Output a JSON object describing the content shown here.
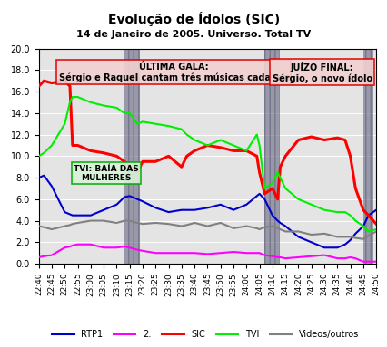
{
  "chart_data": {
    "type": "line",
    "title": "Evolução de Ídolos (SIC)",
    "subtitle": "14 de Janeiro de 2005. Universo. Total TV",
    "annotations": [
      "ÚLTIMA GALA:\nSérgio e Raquel cantam três músicas cada um",
      "JUÍZO FINAL:\nSérgio, o novo ídolo",
      "TVI: BAÍA DAS\nMULHERES"
    ],
    "x": [
      1360,
      1362,
      1365,
      1370,
      1372,
      1373,
      1375,
      1380,
      1385,
      1390,
      1393,
      1395,
      1398,
      1400,
      1405,
      1410,
      1415,
      1417,
      1420,
      1425,
      1430,
      1435,
      1440,
      1444,
      1445,
      1447,
      1450,
      1452,
      1453,
      1455,
      1460,
      1465,
      1470,
      1475,
      1478,
      1480,
      1482,
      1485,
      1487,
      1490
    ],
    "series": [
      {
        "name": "RTP1",
        "color": "#0000cc",
        "values": [
          8,
          8.2,
          7.2,
          4.8,
          4.6,
          4.5,
          4.5,
          4.5,
          5,
          5.5,
          6.2,
          6.3,
          6,
          5.8,
          5.2,
          4.8,
          5,
          5,
          5,
          5.2,
          5.5,
          5,
          5.5,
          6.3,
          6.5,
          6,
          4.5,
          4,
          3.8,
          3.5,
          2.5,
          2,
          1.5,
          1.5,
          1.8,
          2.2,
          2.8,
          3.5,
          4.5,
          5
        ]
      },
      {
        "name": "2:",
        "color": "#ff00ff",
        "values": [
          0.6,
          0.7,
          0.8,
          1.5,
          1.6,
          1.7,
          1.8,
          1.8,
          1.5,
          1.5,
          1.6,
          1.5,
          1.3,
          1.2,
          1.0,
          1.0,
          1.0,
          1.0,
          1.0,
          0.9,
          1.0,
          1.1,
          1.0,
          1.0,
          1.0,
          0.8,
          0.7,
          0.6,
          0.6,
          0.5,
          0.6,
          0.7,
          0.8,
          0.5,
          0.5,
          0.6,
          0.5,
          0.2,
          0.2,
          0.2
        ]
      },
      {
        "name": "SIC",
        "color": "#ff0000",
        "values": [
          16.5,
          17,
          16.8,
          17,
          16.5,
          11,
          11,
          10.5,
          10.3,
          10,
          9.5,
          9,
          8.5,
          9.5,
          9.5,
          10,
          9,
          10,
          10.5,
          11,
          10.8,
          10.5,
          10.5,
          10,
          8.5,
          6.5,
          7,
          6,
          9,
          10,
          11.5,
          11.8,
          11.5,
          11.7,
          11.5,
          10,
          7,
          5,
          4.5,
          3.7
        ]
      },
      {
        "name": "TVI",
        "color": "#00ee00",
        "values": [
          10,
          10.3,
          11,
          13,
          15,
          15.5,
          15.5,
          15,
          14.7,
          14.5,
          14,
          14,
          13,
          13.2,
          13,
          12.8,
          12.5,
          12,
          11.5,
          11,
          11.5,
          11,
          10.5,
          12,
          11,
          7,
          7.5,
          8.5,
          8,
          7,
          6,
          5.5,
          5,
          4.8,
          4.8,
          4.5,
          4,
          3.5,
          3,
          3.2
        ]
      },
      {
        "name": "Videos/outros",
        "color": "#808080",
        "values": [
          3.5,
          3.4,
          3.2,
          3.5,
          3.6,
          3.7,
          3.8,
          4,
          4,
          3.8,
          4,
          4,
          3.8,
          3.7,
          3.8,
          3.7,
          3.5,
          3.6,
          3.8,
          3.5,
          3.8,
          3.3,
          3.5,
          3.3,
          3.2,
          3.4,
          3.5,
          3.3,
          3.2,
          3,
          3,
          2.7,
          2.8,
          2.5,
          2.5,
          2.5,
          2.4,
          2.3,
          2.6,
          3
        ]
      }
    ],
    "breaks": [
      [
        1393,
        1399
      ],
      [
        1447,
        1453
      ],
      [
        1485,
        1489
      ]
    ],
    "xlim": [
      1360,
      1490
    ],
    "xticks": [
      {
        "value": 1360,
        "label": "22:40"
      },
      {
        "value": 1365,
        "label": "22:45"
      },
      {
        "value": 1370,
        "label": "22:50"
      },
      {
        "value": 1375,
        "label": "22:55"
      },
      {
        "value": 1380,
        "label": "23:00"
      },
      {
        "value": 1385,
        "label": "23:05"
      },
      {
        "value": 1390,
        "label": "23:10"
      },
      {
        "value": 1395,
        "label": "23:15"
      },
      {
        "value": 1400,
        "label": "23:20"
      },
      {
        "value": 1405,
        "label": "23:25"
      },
      {
        "value": 1410,
        "label": "23:30"
      },
      {
        "value": 1415,
        "label": "23:35"
      },
      {
        "value": 1420,
        "label": "23:40"
      },
      {
        "value": 1425,
        "label": "23:45"
      },
      {
        "value": 1430,
        "label": "23:50"
      },
      {
        "value": 1435,
        "label": "23:55"
      },
      {
        "value": 1440,
        "label": "24:00"
      },
      {
        "value": 1445,
        "label": "24:05"
      },
      {
        "value": 1450,
        "label": "24:10"
      },
      {
        "value": 1455,
        "label": "24:15"
      },
      {
        "value": 1460,
        "label": "24:20"
      },
      {
        "value": 1465,
        "label": "24:25"
      },
      {
        "value": 1470,
        "label": "24:30"
      },
      {
        "value": 1475,
        "label": "24:35"
      },
      {
        "value": 1480,
        "label": "24:40"
      },
      {
        "value": 1485,
        "label": "24:45"
      },
      {
        "value": 1490,
        "label": "24:50"
      }
    ],
    "ylim": [
      0,
      20
    ],
    "yticks": [
      {
        "value": 0,
        "label": "0.0"
      },
      {
        "value": 2,
        "label": "2.0"
      },
      {
        "value": 4,
        "label": "4.0"
      },
      {
        "value": 6,
        "label": "6.0"
      },
      {
        "value": 8,
        "label": "8.0"
      },
      {
        "value": 10,
        "label": "10.0"
      },
      {
        "value": 12,
        "label": "12.0"
      },
      {
        "value": 14,
        "label": "14.0"
      },
      {
        "value": 16,
        "label": "16.0"
      },
      {
        "value": 18,
        "label": "18.0"
      },
      {
        "value": 20,
        "label": "20.0"
      }
    ],
    "grid": true,
    "legend": "bottom"
  }
}
